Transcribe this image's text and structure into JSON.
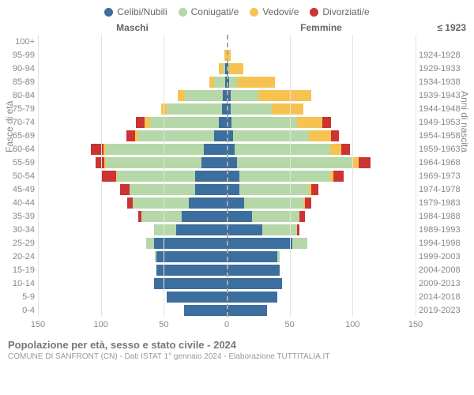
{
  "title": "Popolazione per età, sesso e stato civile - 2024",
  "subtitle": "COMUNE DI SANFRONT (CN) - Dati ISTAT 1° gennaio 2024 - Elaborazione TUTTITALIA.IT",
  "headers": {
    "males": "Maschi",
    "females": "Femmine",
    "birth_first": "≤ 1923"
  },
  "axes": {
    "y_left_title": "Fasce di età",
    "y_right_title": "Anni di nascita",
    "x_ticks": [
      150,
      100,
      50,
      0,
      50,
      100,
      150
    ],
    "x_max": 150
  },
  "legend": [
    {
      "label": "Celibi/Nubili",
      "color": "#3c6e9e"
    },
    {
      "label": "Coniugati/e",
      "color": "#b6d7a8"
    },
    {
      "label": "Vedovi/e",
      "color": "#f6c353"
    },
    {
      "label": "Divorziati/e",
      "color": "#cc3333"
    }
  ],
  "colors": {
    "single": "#3c6e9e",
    "married": "#b6d7a8",
    "widowed": "#f6c353",
    "divorced": "#cc3333",
    "grid": "#e3e3e3",
    "center": "#aaaaaa",
    "text": "#888888"
  },
  "rows": [
    {
      "age": "100+",
      "birth": "",
      "m": {
        "s": 0,
        "m": 0,
        "w": 0,
        "d": 0
      },
      "f": {
        "s": 0,
        "m": 0,
        "w": 0,
        "d": 0
      }
    },
    {
      "age": "95-99",
      "birth": "1924-1928",
      "m": {
        "s": 0,
        "m": 0,
        "w": 2,
        "d": 0
      },
      "f": {
        "s": 0,
        "m": 0,
        "w": 3,
        "d": 0
      }
    },
    {
      "age": "90-94",
      "birth": "1929-1933",
      "m": {
        "s": 1,
        "m": 2,
        "w": 3,
        "d": 0
      },
      "f": {
        "s": 1,
        "m": 1,
        "w": 11,
        "d": 0
      }
    },
    {
      "age": "85-89",
      "birth": "1934-1938",
      "m": {
        "s": 1,
        "m": 9,
        "w": 4,
        "d": 0
      },
      "f": {
        "s": 2,
        "m": 6,
        "w": 30,
        "d": 0
      }
    },
    {
      "age": "80-84",
      "birth": "1939-1943",
      "m": {
        "s": 3,
        "m": 30,
        "w": 6,
        "d": 0
      },
      "f": {
        "s": 3,
        "m": 22,
        "w": 42,
        "d": 0
      }
    },
    {
      "age": "75-79",
      "birth": "1944-1948",
      "m": {
        "s": 4,
        "m": 44,
        "w": 4,
        "d": 0
      },
      "f": {
        "s": 3,
        "m": 33,
        "w": 25,
        "d": 0
      }
    },
    {
      "age": "70-74",
      "birth": "1949-1953",
      "m": {
        "s": 6,
        "m": 55,
        "w": 4,
        "d": 7
      },
      "f": {
        "s": 4,
        "m": 52,
        "w": 20,
        "d": 7
      }
    },
    {
      "age": "65-69",
      "birth": "1954-1958",
      "m": {
        "s": 10,
        "m": 60,
        "w": 3,
        "d": 7
      },
      "f": {
        "s": 5,
        "m": 60,
        "w": 18,
        "d": 6
      }
    },
    {
      "age": "60-64",
      "birth": "1959-1963",
      "m": {
        "s": 18,
        "m": 78,
        "w": 2,
        "d": 10
      },
      "f": {
        "s": 6,
        "m": 76,
        "w": 9,
        "d": 7
      }
    },
    {
      "age": "55-59",
      "birth": "1964-1968",
      "m": {
        "s": 20,
        "m": 76,
        "w": 1,
        "d": 7
      },
      "f": {
        "s": 8,
        "m": 92,
        "w": 5,
        "d": 9
      }
    },
    {
      "age": "50-54",
      "birth": "1969-1973",
      "m": {
        "s": 25,
        "m": 62,
        "w": 1,
        "d": 12
      },
      "f": {
        "s": 10,
        "m": 72,
        "w": 3,
        "d": 8
      }
    },
    {
      "age": "45-49",
      "birth": "1974-1978",
      "m": {
        "s": 25,
        "m": 52,
        "w": 0,
        "d": 8
      },
      "f": {
        "s": 10,
        "m": 55,
        "w": 2,
        "d": 6
      }
    },
    {
      "age": "40-44",
      "birth": "1979-1983",
      "m": {
        "s": 30,
        "m": 45,
        "w": 0,
        "d": 4
      },
      "f": {
        "s": 14,
        "m": 47,
        "w": 1,
        "d": 5
      }
    },
    {
      "age": "35-39",
      "birth": "1984-1988",
      "m": {
        "s": 36,
        "m": 32,
        "w": 0,
        "d": 2
      },
      "f": {
        "s": 20,
        "m": 38,
        "w": 0,
        "d": 4
      }
    },
    {
      "age": "30-34",
      "birth": "1989-1993",
      "m": {
        "s": 40,
        "m": 18,
        "w": 0,
        "d": 0
      },
      "f": {
        "s": 28,
        "m": 28,
        "w": 0,
        "d": 2
      }
    },
    {
      "age": "25-29",
      "birth": "1994-1998",
      "m": {
        "s": 58,
        "m": 6,
        "w": 0,
        "d": 0
      },
      "f": {
        "s": 52,
        "m": 12,
        "w": 0,
        "d": 0
      }
    },
    {
      "age": "20-24",
      "birth": "1999-2003",
      "m": {
        "s": 56,
        "m": 1,
        "w": 0,
        "d": 0
      },
      "f": {
        "s": 40,
        "m": 2,
        "w": 0,
        "d": 0
      }
    },
    {
      "age": "15-19",
      "birth": "2004-2008",
      "m": {
        "s": 56,
        "m": 0,
        "w": 0,
        "d": 0
      },
      "f": {
        "s": 42,
        "m": 0,
        "w": 0,
        "d": 0
      }
    },
    {
      "age": "10-14",
      "birth": "2009-2013",
      "m": {
        "s": 58,
        "m": 0,
        "w": 0,
        "d": 0
      },
      "f": {
        "s": 44,
        "m": 0,
        "w": 0,
        "d": 0
      }
    },
    {
      "age": "5-9",
      "birth": "2014-2018",
      "m": {
        "s": 48,
        "m": 0,
        "w": 0,
        "d": 0
      },
      "f": {
        "s": 40,
        "m": 0,
        "w": 0,
        "d": 0
      }
    },
    {
      "age": "0-4",
      "birth": "2019-2023",
      "m": {
        "s": 34,
        "m": 0,
        "w": 0,
        "d": 0
      },
      "f": {
        "s": 32,
        "m": 0,
        "w": 0,
        "d": 0
      }
    }
  ]
}
